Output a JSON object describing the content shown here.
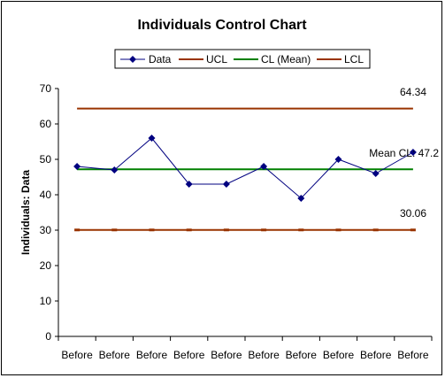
{
  "chart_data": {
    "type": "line",
    "title": "Individuals Control Chart",
    "xlabel": "",
    "ylabel": "Individuals: Data",
    "ylim": [
      0,
      70
    ],
    "yticks": [
      0,
      10,
      20,
      30,
      40,
      50,
      60,
      70
    ],
    "categories": [
      "Before",
      "Before",
      "Before",
      "Before",
      "Before",
      "Before",
      "Before",
      "Before",
      "Before",
      "Before"
    ],
    "grid": false,
    "legend_position": "top",
    "series": [
      {
        "name": "Data",
        "color": "#000080",
        "marker": "diamond",
        "values": [
          48,
          47,
          56,
          43,
          43,
          48,
          39,
          50,
          46,
          52
        ]
      },
      {
        "name": "UCL",
        "color": "#993300",
        "values": [
          64.34,
          64.34,
          64.34,
          64.34,
          64.34,
          64.34,
          64.34,
          64.34,
          64.34,
          64.34
        ]
      },
      {
        "name": "CL (Mean)",
        "color": "#008000",
        "values": [
          47.2,
          47.2,
          47.2,
          47.2,
          47.2,
          47.2,
          47.2,
          47.2,
          47.2,
          47.2
        ]
      },
      {
        "name": "LCL",
        "color": "#993300",
        "values": [
          30.06,
          30.06,
          30.06,
          30.06,
          30.06,
          30.06,
          30.06,
          30.06,
          30.06,
          30.06
        ]
      }
    ],
    "annotations": {
      "ucl_label": "64.34",
      "cl_label": "Mean CL: 47.2",
      "lcl_label": "30.06"
    }
  }
}
